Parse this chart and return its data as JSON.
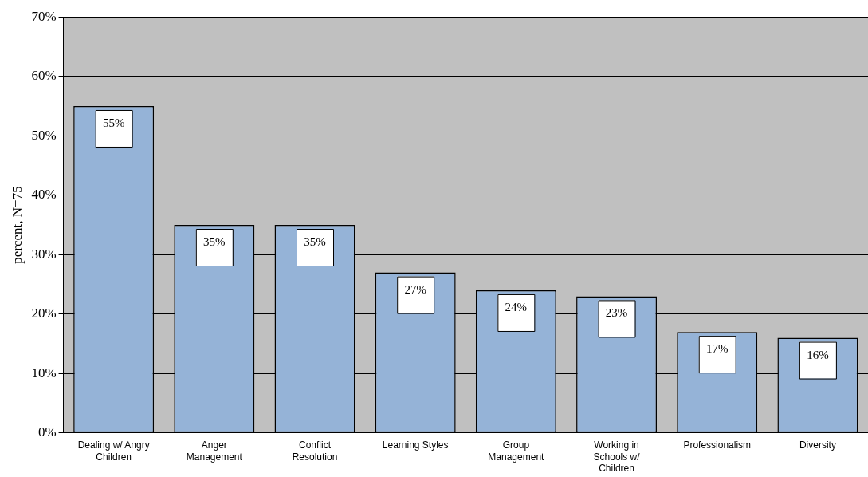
{
  "chart_data": {
    "type": "bar",
    "ylabel": "percent, N=75",
    "categories": [
      "Dealing w/ Angry Children",
      "Anger Management",
      "Conflict Resolution",
      "Learning Styles",
      "Group Management",
      "Working in Schools w/ Children",
      "Professionalism",
      "Diversity"
    ],
    "values": [
      55,
      35,
      35,
      27,
      24,
      23,
      17,
      16
    ],
    "value_labels": [
      "55%",
      "35%",
      "35%",
      "27%",
      "24%",
      "23%",
      "17%",
      "16%"
    ],
    "color": "#95b3d7",
    "ylim": [
      0,
      70
    ],
    "yticks": [
      {
        "value": 0,
        "label": "0%"
      },
      {
        "value": 10,
        "label": "10%"
      },
      {
        "value": 20,
        "label": "20%"
      },
      {
        "value": 30,
        "label": "30%"
      },
      {
        "value": 40,
        "label": "40%"
      },
      {
        "value": 50,
        "label": "50%"
      },
      {
        "value": 60,
        "label": "60%"
      },
      {
        "value": 70,
        "label": "70%"
      }
    ],
    "grid": "y",
    "legend": false
  }
}
